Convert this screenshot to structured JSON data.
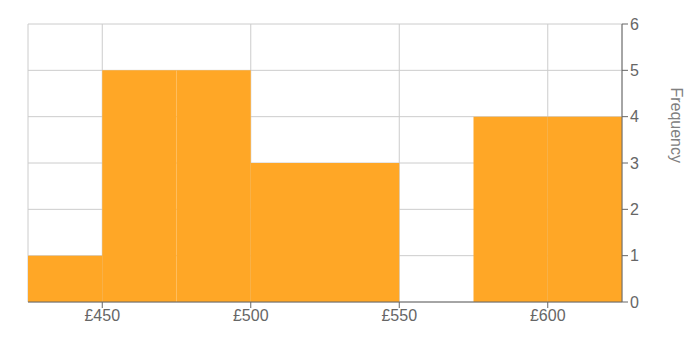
{
  "chart_data": {
    "type": "histogram",
    "bins": [
      425,
      450,
      475,
      500,
      525,
      550,
      575,
      600,
      625
    ],
    "values": [
      1,
      5,
      5,
      3,
      3,
      0,
      4,
      4
    ],
    "color": "#FFA726",
    "xlim": [
      425,
      625
    ],
    "xticks": [
      {
        "value": 450,
        "label": "£450"
      },
      {
        "value": 500,
        "label": "£500"
      },
      {
        "value": 550,
        "label": "£550"
      },
      {
        "value": 600,
        "label": "£600"
      }
    ],
    "ylabel": "Frequency",
    "ylim": [
      0,
      6
    ],
    "yticks": [
      0,
      1,
      2,
      3,
      4,
      5,
      6
    ],
    "grid": true
  }
}
